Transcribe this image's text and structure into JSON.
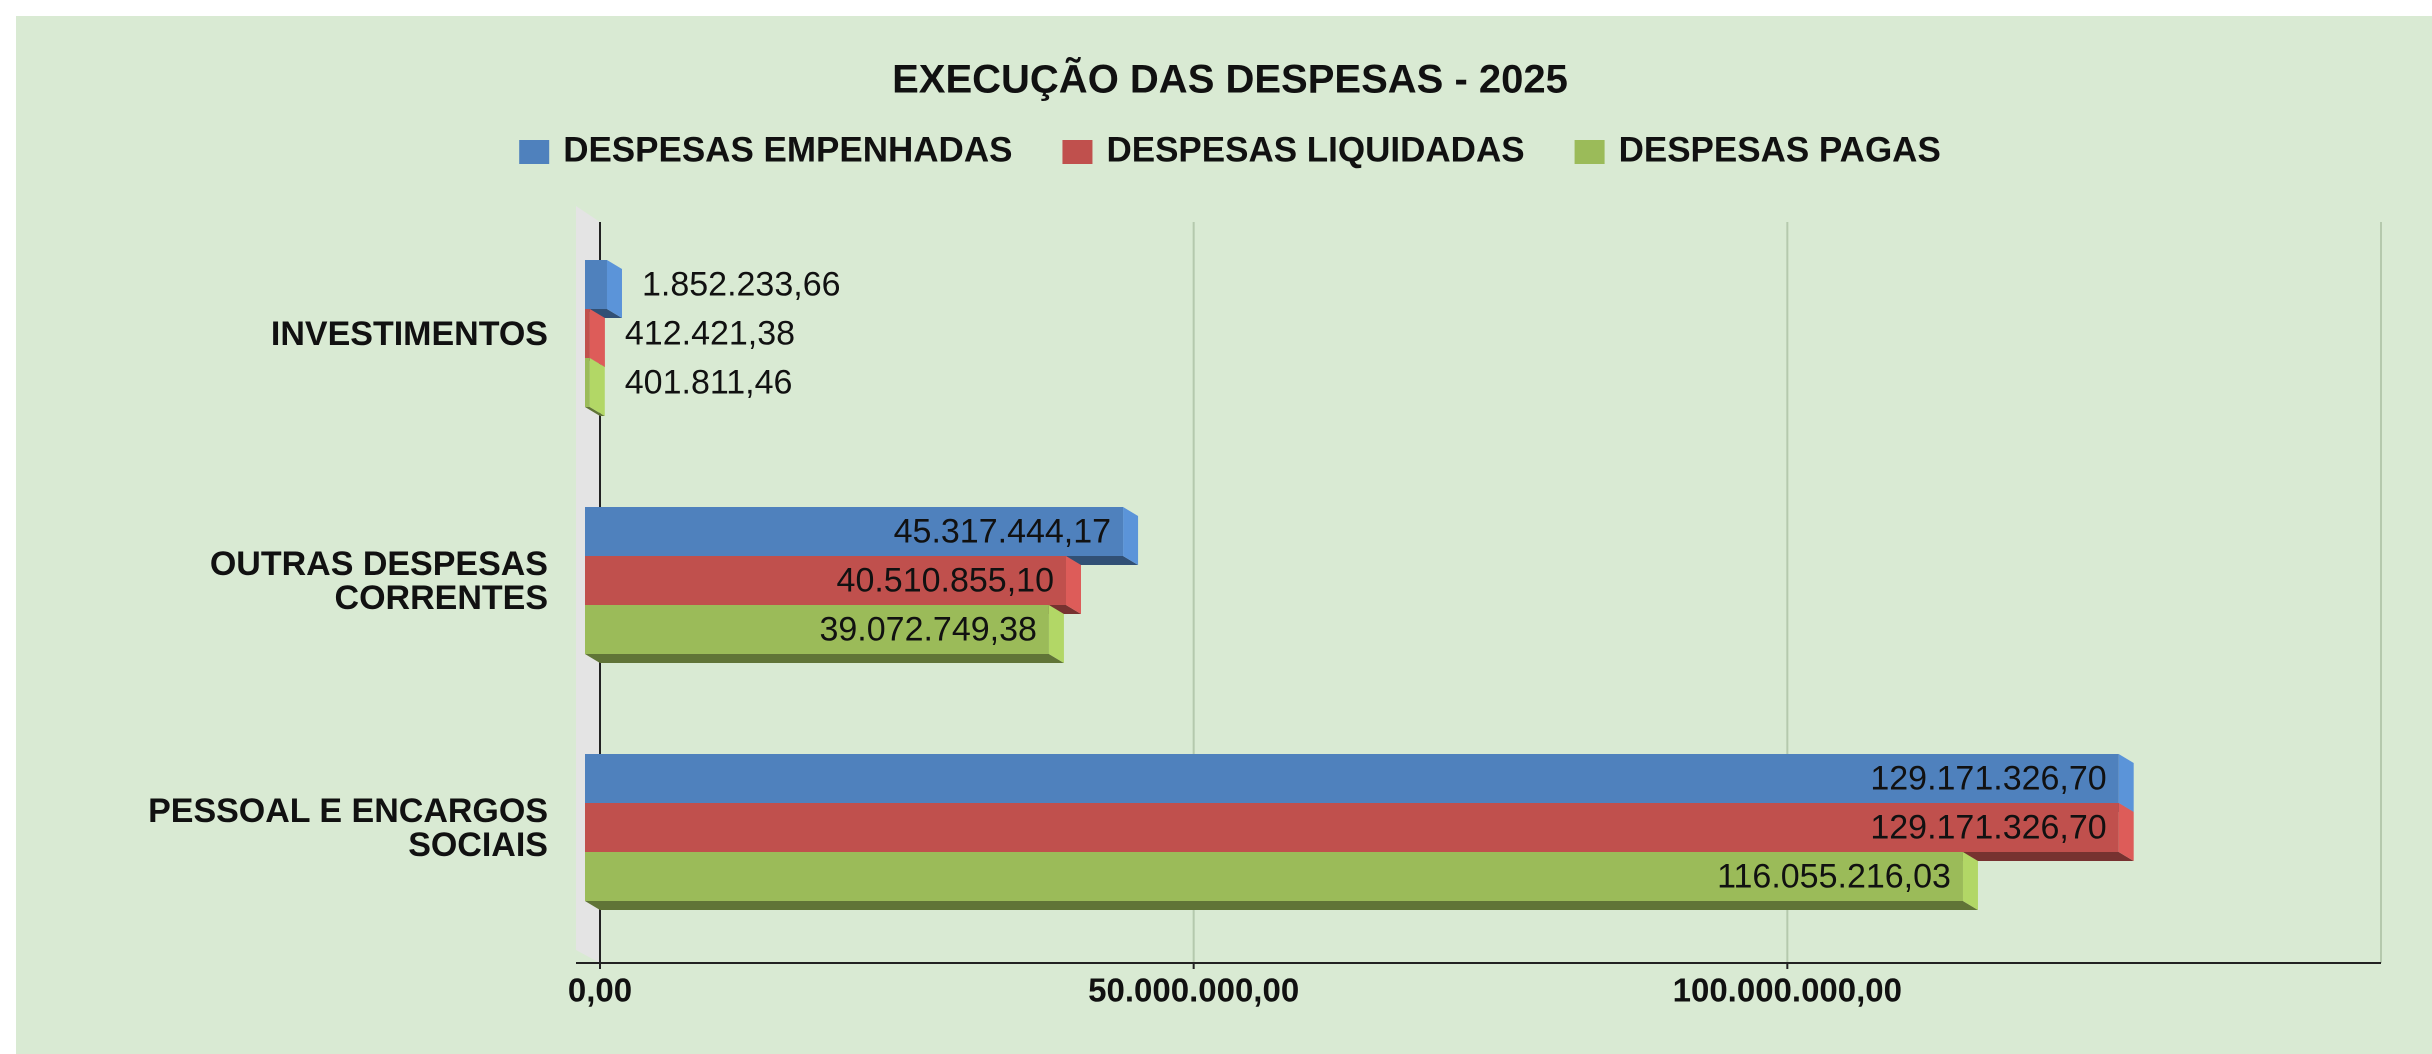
{
  "chart_data": {
    "type": "bar",
    "orientation": "horizontal",
    "title": "EXECUÇÃO DAS DESPESAS - 2025",
    "categories": [
      "INVESTIMENTOS",
      "OUTRAS DESPESAS CORRENTES",
      "PESSOAL E ENCARGOS SOCIAIS"
    ],
    "series": [
      {
        "name": "DESPESAS EMPENHADAS",
        "color": "#4f81bd",
        "values": [
          1852233.66,
          45317444.17,
          129171326.7
        ],
        "value_labels": [
          "1.852.233,66",
          "45.317.444,17",
          "129.171.326,70"
        ]
      },
      {
        "name": "DESPESAS LIQUIDADAS",
        "color": "#c0504d",
        "values": [
          412421.38,
          40510855.1,
          129171326.7
        ],
        "value_labels": [
          "412.421,38",
          "40.510.855,10",
          "129.171.326,70"
        ]
      },
      {
        "name": "DESPESAS PAGAS",
        "color": "#9bbb59",
        "values": [
          401811.46,
          39072749.38,
          116055216.03
        ],
        "value_labels": [
          "401.811,46",
          "39.072.749,38",
          "116.055.216,03"
        ]
      }
    ],
    "xlim": [
      0,
      150000000
    ],
    "xticks": [
      {
        "value": 0,
        "label": "0,00"
      },
      {
        "value": 50000000,
        "label": "50.000.000,00"
      },
      {
        "value": 100000000,
        "label": "100.000.000,00"
      }
    ],
    "grid": true,
    "legend": "top"
  }
}
